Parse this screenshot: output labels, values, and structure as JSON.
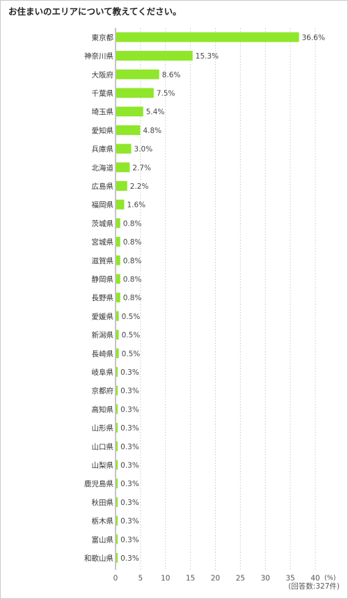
{
  "title": "お住まいのエリアについて教えてください。",
  "unit_label": "(%)",
  "respondents_note": "(回答数:327件)",
  "colors": {
    "bar": "#8fe62a",
    "grid": "#d4d4d4",
    "axis": "#8a8a8a"
  },
  "chart_data": {
    "type": "bar",
    "orientation": "horizontal",
    "categories": [
      "東京都",
      "神奈川県",
      "大阪府",
      "千葉県",
      "埼玉県",
      "愛知県",
      "兵庫県",
      "北海道",
      "広島県",
      "福岡県",
      "茨城県",
      "宮城県",
      "滋賀県",
      "静岡県",
      "長野県",
      "愛媛県",
      "新潟県",
      "長崎県",
      "岐阜県",
      "京都府",
      "高知県",
      "山形県",
      "山口県",
      "山梨県",
      "鹿児島県",
      "秋田県",
      "栃木県",
      "富山県",
      "和歌山県"
    ],
    "values": [
      36.6,
      15.3,
      8.6,
      7.5,
      5.4,
      4.8,
      3.0,
      2.7,
      2.2,
      1.6,
      0.8,
      0.8,
      0.8,
      0.8,
      0.8,
      0.5,
      0.5,
      0.5,
      0.3,
      0.3,
      0.3,
      0.3,
      0.3,
      0.3,
      0.3,
      0.3,
      0.3,
      0.3,
      0.3
    ],
    "value_labels": [
      "36.6%",
      "15.3%",
      "8.6%",
      "7.5%",
      "5.4%",
      "4.8%",
      "3.0%",
      "2.7%",
      "2.2%",
      "1.6%",
      "0.8%",
      "0.8%",
      "0.8%",
      "0.8%",
      "0.8%",
      "0.5%",
      "0.5%",
      "0.5%",
      "0.3%",
      "0.3%",
      "0.3%",
      "0.3%",
      "0.3%",
      "0.3%",
      "0.3%",
      "0.3%",
      "0.3%",
      "0.3%",
      "0.3%"
    ],
    "xlim": [
      0,
      40
    ],
    "x_ticks": [
      0,
      5,
      10,
      15,
      20,
      25,
      30,
      35,
      40
    ],
    "x_tick_labels": [
      "0",
      "5",
      "10",
      "15",
      "20",
      "25",
      "30",
      "35",
      "40"
    ],
    "grid": true
  }
}
